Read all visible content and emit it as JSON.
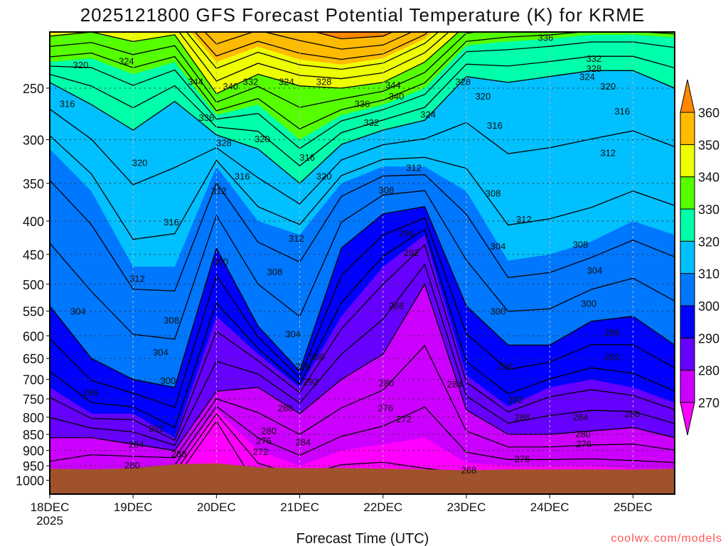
{
  "chart_data": {
    "type": "heatmap",
    "title": "2025121800 GFS Forecast Potential Temperature (K) for KRME",
    "xlabel": "Forecast Time (UTC)",
    "ylabel": "",
    "watermark": "coolwx.com/models",
    "x_ticks": [
      "18DEC",
      "19DEC",
      "20DEC",
      "21DEC",
      "22DEC",
      "23DEC",
      "24DEC",
      "25DEC"
    ],
    "x_year": "2025",
    "xlim_days": [
      0,
      7.5
    ],
    "y_ticks": [
      250,
      300,
      350,
      400,
      450,
      500,
      550,
      600,
      650,
      700,
      750,
      800,
      850,
      900,
      950,
      1000
    ],
    "ylim_hpa": [
      1050,
      205
    ],
    "y_scale": "log",
    "grid": true,
    "colorbar": {
      "levels": [
        270,
        280,
        290,
        300,
        310,
        320,
        330,
        340,
        350,
        360
      ],
      "colors": [
        "#ff00ff",
        "#cc00ff",
        "#6600ff",
        "#0000ff",
        "#0077ff",
        "#00c0ff",
        "#00ffaa",
        "#55ff00",
        "#eeff00",
        "#ffbb00",
        "#ff8800"
      ],
      "placement": "right"
    },
    "terrain_color": "#a0522d",
    "times_days": [
      0,
      0.5,
      1,
      1.5,
      2,
      2.5,
      3,
      3.5,
      4,
      4.5,
      5,
      5.5,
      6,
      6.5,
      7,
      7.5
    ],
    "isentrope_levels": [
      270,
      280,
      290,
      300,
      310,
      320,
      330,
      340,
      350,
      360
    ],
    "isentrope_pressure_hpa": [
      [
        1060,
        860,
        720,
        540,
        310,
        245,
        228,
        208,
        190,
        175
      ],
      [
        1000,
        860,
        790,
        650,
        360,
        265,
        225,
        205,
        188,
        175
      ],
      [
        980,
        880,
        790,
        700,
        470,
        290,
        238,
        212,
        192,
        178
      ],
      [
        960,
        900,
        860,
        720,
        470,
        262,
        228,
        207,
        192,
        178
      ],
      [
        780,
        730,
        560,
        440,
        330,
        295,
        275,
        255,
        228,
        205
      ],
      [
        900,
        720,
        640,
        580,
        400,
        310,
        265,
        238,
        216,
        196
      ],
      [
        950,
        790,
        720,
        680,
        420,
        350,
        300,
        248,
        226,
        202
      ],
      [
        900,
        700,
        560,
        440,
        350,
        305,
        275,
        250,
        230,
        210
      ],
      [
        880,
        640,
        470,
        390,
        330,
        290,
        265,
        245,
        225,
        208
      ],
      [
        860,
        500,
        420,
        380,
        330,
        280,
        250,
        228,
        210,
        195
      ],
      [
        940,
        780,
        690,
        540,
        360,
        240,
        215,
        200,
        186,
        175
      ],
      [
        950,
        850,
        770,
        620,
        460,
        245,
        212,
        196,
        186,
        175
      ],
      [
        950,
        850,
        720,
        620,
        450,
        240,
        210,
        196,
        186,
        175
      ],
      [
        950,
        840,
        700,
        570,
        430,
        235,
        207,
        194,
        186,
        175
      ],
      [
        960,
        830,
        720,
        560,
        400,
        235,
        207,
        195,
        186,
        175
      ],
      [
        960,
        860,
        760,
        620,
        420,
        250,
        209,
        196,
        186,
        175
      ]
    ],
    "surface_pressure_hpa": [
      960,
      962,
      958,
      945,
      942,
      955,
      958,
      957,
      960,
      962,
      965,
      962,
      962,
      962,
      963,
      960
    ],
    "contour_interval_k": 4,
    "contour_labels": [
      {
        "t": 0.37,
        "p": 230,
        "v": "320"
      },
      {
        "t": 0.92,
        "p": 227,
        "v": "324"
      },
      {
        "t": 0.21,
        "p": 264,
        "v": "316"
      },
      {
        "t": 1.08,
        "p": 325,
        "v": "320"
      },
      {
        "t": 1.46,
        "p": 401,
        "v": "316"
      },
      {
        "t": 1.05,
        "p": 490,
        "v": "312"
      },
      {
        "t": 0.34,
        "p": 550,
        "v": "304"
      },
      {
        "t": 1.46,
        "p": 567,
        "v": "308"
      },
      {
        "t": 1.33,
        "p": 635,
        "v": "304"
      },
      {
        "t": 1.42,
        "p": 702,
        "v": "300"
      },
      {
        "t": 0.49,
        "p": 733,
        "v": "296"
      },
      {
        "t": 1.28,
        "p": 831,
        "v": "292"
      },
      {
        "t": 1.04,
        "p": 880,
        "v": "284"
      },
      {
        "t": 1.55,
        "p": 910,
        "v": "288"
      },
      {
        "t": 0.99,
        "p": 947,
        "v": "280"
      },
      {
        "t": 1.75,
        "p": 244,
        "v": "344"
      },
      {
        "t": 2.17,
        "p": 248,
        "v": "340"
      },
      {
        "t": 2.41,
        "p": 244,
        "v": "332"
      },
      {
        "t": 2.84,
        "p": 244,
        "v": "324"
      },
      {
        "t": 3.29,
        "p": 244,
        "v": "328"
      },
      {
        "t": 1.88,
        "p": 277,
        "v": "336"
      },
      {
        "t": 2.09,
        "p": 303,
        "v": "328"
      },
      {
        "t": 2.55,
        "p": 299,
        "v": "320"
      },
      {
        "t": 2.31,
        "p": 341,
        "v": "316"
      },
      {
        "t": 2.03,
        "p": 359,
        "v": "312"
      },
      {
        "t": 3.09,
        "p": 319,
        "v": "316"
      },
      {
        "t": 3.29,
        "p": 341,
        "v": "320"
      },
      {
        "t": 2.05,
        "p": 461,
        "v": "300"
      },
      {
        "t": 2.96,
        "p": 425,
        "v": "312"
      },
      {
        "t": 2.7,
        "p": 478,
        "v": "308"
      },
      {
        "t": 2.92,
        "p": 596,
        "v": "304"
      },
      {
        "t": 3.21,
        "p": 646,
        "v": "300"
      },
      {
        "t": 3.04,
        "p": 668,
        "v": "296"
      },
      {
        "t": 3.13,
        "p": 705,
        "v": "292"
      },
      {
        "t": 2.83,
        "p": 774,
        "v": "288"
      },
      {
        "t": 2.63,
        "p": 839,
        "v": "280"
      },
      {
        "t": 2.57,
        "p": 869,
        "v": "276"
      },
      {
        "t": 2.53,
        "p": 903,
        "v": "272"
      },
      {
        "t": 3.04,
        "p": 873,
        "v": "284"
      },
      {
        "t": 4.12,
        "p": 247,
        "v": "344"
      },
      {
        "t": 4.16,
        "p": 257,
        "v": "340"
      },
      {
        "t": 3.75,
        "p": 264,
        "v": "336"
      },
      {
        "t": 3.86,
        "p": 282,
        "v": "332"
      },
      {
        "t": 4.54,
        "p": 274,
        "v": "324"
      },
      {
        "t": 4.96,
        "p": 244,
        "v": "328"
      },
      {
        "t": 5.2,
        "p": 257,
        "v": "320"
      },
      {
        "t": 5.34,
        "p": 285,
        "v": "316"
      },
      {
        "t": 4.37,
        "p": 331,
        "v": "312"
      },
      {
        "t": 4.04,
        "p": 358,
        "v": "308"
      },
      {
        "t": 4.28,
        "p": 417,
        "v": "296"
      },
      {
        "t": 4.34,
        "p": 447,
        "v": "292"
      },
      {
        "t": 4.16,
        "p": 539,
        "v": "288"
      },
      {
        "t": 4.04,
        "p": 709,
        "v": "280"
      },
      {
        "t": 4.03,
        "p": 774,
        "v": "276"
      },
      {
        "t": 4.25,
        "p": 804,
        "v": "272"
      },
      {
        "t": 4.86,
        "p": 711,
        "v": "284"
      },
      {
        "t": 5.03,
        "p": 964,
        "v": "268"
      },
      {
        "t": 5.95,
        "p": 209,
        "v": "336"
      },
      {
        "t": 6.53,
        "p": 225,
        "v": "332"
      },
      {
        "t": 6.53,
        "p": 233,
        "v": "328"
      },
      {
        "t": 6.45,
        "p": 240,
        "v": "324"
      },
      {
        "t": 6.7,
        "p": 248,
        "v": "320"
      },
      {
        "t": 6.87,
        "p": 271,
        "v": "316"
      },
      {
        "t": 6.7,
        "p": 314,
        "v": "312"
      },
      {
        "t": 5.32,
        "p": 362,
        "v": "308"
      },
      {
        "t": 5.69,
        "p": 397,
        "v": "312"
      },
      {
        "t": 5.38,
        "p": 437,
        "v": "304"
      },
      {
        "t": 6.37,
        "p": 434,
        "v": "308"
      },
      {
        "t": 6.54,
        "p": 476,
        "v": "304"
      },
      {
        "t": 5.38,
        "p": 550,
        "v": "300"
      },
      {
        "t": 6.47,
        "p": 535,
        "v": "300"
      },
      {
        "t": 6.75,
        "p": 592,
        "v": "296"
      },
      {
        "t": 6.75,
        "p": 646,
        "v": "292"
      },
      {
        "t": 5.46,
        "p": 668,
        "v": "296"
      },
      {
        "t": 5.59,
        "p": 752,
        "v": "292"
      },
      {
        "t": 5.67,
        "p": 799,
        "v": "288"
      },
      {
        "t": 6.37,
        "p": 799,
        "v": "284"
      },
      {
        "t": 6.99,
        "p": 789,
        "v": "288"
      },
      {
        "t": 6.4,
        "p": 848,
        "v": "280"
      },
      {
        "t": 6.41,
        "p": 878,
        "v": "276"
      },
      {
        "t": 5.67,
        "p": 926,
        "v": "276"
      }
    ]
  }
}
